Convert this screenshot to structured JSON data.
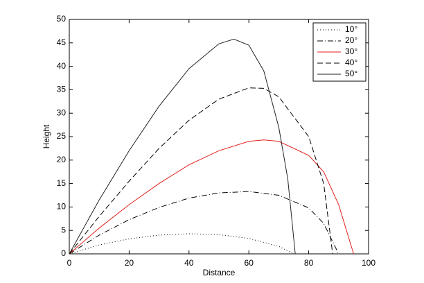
{
  "chart_data": {
    "type": "line",
    "xlabel": "Distance",
    "ylabel": "Height",
    "xlim": [
      0,
      100
    ],
    "xticks": [
      0,
      20,
      40,
      60,
      80,
      100
    ],
    "ylim": [
      0,
      50
    ],
    "yticks": [
      0,
      5,
      10,
      15,
      20,
      25,
      30,
      35,
      40,
      45,
      50
    ],
    "legend": "upper right",
    "series": [
      {
        "name": "10°",
        "color": "#000000",
        "dash": "dotted",
        "x": [
          0,
          10,
          20,
          30,
          40,
          50,
          60,
          70,
          75
        ],
        "values": [
          0,
          1.9,
          3.2,
          4.0,
          4.3,
          4.1,
          3.3,
          1.6,
          0
        ]
      },
      {
        "name": "20°",
        "color": "#000000",
        "dash": "dashdot",
        "x": [
          0,
          10,
          20,
          30,
          40,
          50,
          60,
          70,
          80,
          85,
          90
        ],
        "values": [
          0,
          4,
          7.3,
          9.9,
          11.9,
          13.0,
          13.3,
          12.5,
          9.8,
          6.5,
          0
        ]
      },
      {
        "name": "30°",
        "color": "#e0201b",
        "dash": "solid",
        "x": [
          0,
          10,
          20,
          30,
          40,
          50,
          60,
          65,
          70,
          80,
          85,
          90,
          95
        ],
        "values": [
          0,
          5.5,
          10.5,
          15,
          19,
          22,
          24,
          24.3,
          24,
          21,
          17.5,
          10.5,
          0
        ]
      },
      {
        "name": "40°",
        "color": "#000000",
        "dash": "dashed",
        "x": [
          0,
          10,
          20,
          30,
          40,
          50,
          60,
          65,
          70,
          80,
          85,
          88
        ],
        "values": [
          0,
          8,
          15.5,
          22.5,
          28.5,
          33,
          35.4,
          35.3,
          33.5,
          25,
          15,
          0
        ]
      },
      {
        "name": "50°",
        "color": "#222222",
        "dash": "solid",
        "x": [
          0,
          10,
          20,
          30,
          40,
          50,
          55,
          60,
          65,
          70,
          73,
          75.5
        ],
        "values": [
          0,
          11.5,
          22,
          31.5,
          39.5,
          44.8,
          45.8,
          44.5,
          39,
          27,
          16,
          0
        ]
      }
    ]
  }
}
